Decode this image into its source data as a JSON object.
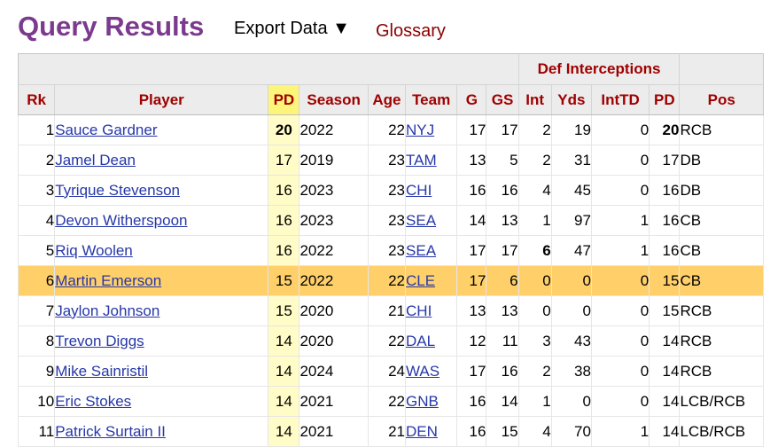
{
  "header": {
    "title": "Query Results",
    "export_label": "Export Data ▼",
    "glossary_label": "Glossary"
  },
  "table": {
    "group_header": "Def Interceptions",
    "columns": [
      "Rk",
      "Player",
      "PD",
      "Season",
      "Age",
      "Team",
      "G",
      "GS",
      "Int",
      "Yds",
      "IntTD",
      "PD",
      "Pos"
    ],
    "sorted_column": "PD",
    "highlight_color": "#ffd06a",
    "rows": [
      {
        "rk": "1",
        "player": "Sauce Gardner",
        "pd": "20",
        "season": "2022",
        "age": "22",
        "team": "NYJ",
        "g": "17",
        "gs": "17",
        "int": "2",
        "yds": "19",
        "inttd": "0",
        "pd2": "20",
        "pos": "RCB",
        "pd_bold": true
      },
      {
        "rk": "2",
        "player": "Jamel Dean",
        "pd": "17",
        "season": "2019",
        "age": "23",
        "team": "TAM",
        "g": "13",
        "gs": "5",
        "int": "2",
        "yds": "31",
        "inttd": "0",
        "pd2": "17",
        "pos": "DB"
      },
      {
        "rk": "3",
        "player": "Tyrique Stevenson",
        "pd": "16",
        "season": "2023",
        "age": "23",
        "team": "CHI",
        "g": "16",
        "gs": "16",
        "int": "4",
        "yds": "45",
        "inttd": "0",
        "pd2": "16",
        "pos": "DB"
      },
      {
        "rk": "4",
        "player": "Devon Witherspoon",
        "pd": "16",
        "season": "2023",
        "age": "23",
        "team": "SEA",
        "g": "14",
        "gs": "13",
        "int": "1",
        "yds": "97",
        "inttd": "1",
        "pd2": "16",
        "pos": "CB"
      },
      {
        "rk": "5",
        "player": "Riq Woolen",
        "pd": "16",
        "season": "2022",
        "age": "23",
        "team": "SEA",
        "g": "17",
        "gs": "17",
        "int": "6",
        "yds": "47",
        "inttd": "1",
        "pd2": "16",
        "pos": "CB",
        "int_bold": true
      },
      {
        "rk": "6",
        "player": "Martin Emerson",
        "pd": "15",
        "season": "2022",
        "age": "22",
        "team": "CLE",
        "g": "17",
        "gs": "6",
        "int": "0",
        "yds": "0",
        "inttd": "0",
        "pd2": "15",
        "pos": "CB",
        "highlight": true
      },
      {
        "rk": "7",
        "player": "Jaylon Johnson",
        "pd": "15",
        "season": "2020",
        "age": "21",
        "team": "CHI",
        "g": "13",
        "gs": "13",
        "int": "0",
        "yds": "0",
        "inttd": "0",
        "pd2": "15",
        "pos": "RCB"
      },
      {
        "rk": "8",
        "player": "Trevon Diggs",
        "pd": "14",
        "season": "2020",
        "age": "22",
        "team": "DAL",
        "g": "12",
        "gs": "11",
        "int": "3",
        "yds": "43",
        "inttd": "0",
        "pd2": "14",
        "pos": "RCB"
      },
      {
        "rk": "9",
        "player": "Mike Sainristil",
        "pd": "14",
        "season": "2024",
        "age": "24",
        "team": "WAS",
        "g": "17",
        "gs": "16",
        "int": "2",
        "yds": "38",
        "inttd": "0",
        "pd2": "14",
        "pos": "RCB"
      },
      {
        "rk": "10",
        "player": "Eric Stokes",
        "pd": "14",
        "season": "2021",
        "age": "22",
        "team": "GNB",
        "g": "16",
        "gs": "14",
        "int": "1",
        "yds": "0",
        "inttd": "0",
        "pd2": "14",
        "pos": "LCB/RCB"
      },
      {
        "rk": "11",
        "player": "Patrick Surtain II",
        "pd": "14",
        "season": "2021",
        "age": "21",
        "team": "DEN",
        "g": "16",
        "gs": "15",
        "int": "4",
        "yds": "70",
        "inttd": "1",
        "pd2": "14",
        "pos": "LCB/RCB"
      }
    ]
  }
}
